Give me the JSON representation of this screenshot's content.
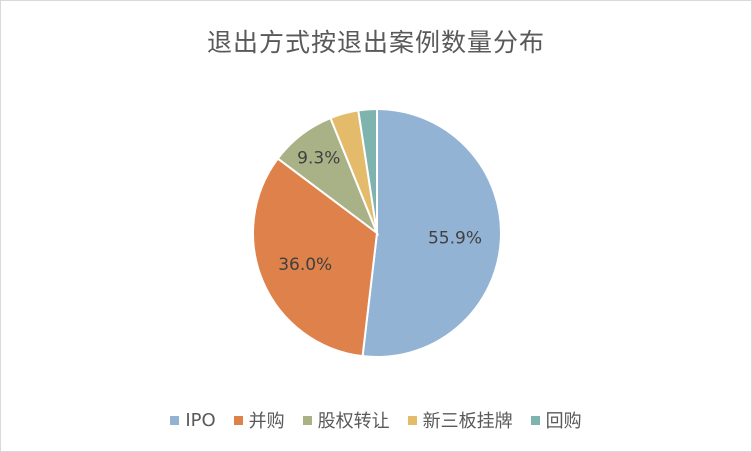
{
  "chart_data": {
    "type": "pie",
    "title": "退出方式按退出案例数量分布",
    "categories": [
      "IPO",
      "并购",
      "股权转让",
      "新三板挂牌",
      "回购"
    ],
    "values": [
      55.9,
      36.0,
      9.3,
      4.0,
      2.6
    ],
    "data_labels": [
      "55.9%",
      "36.0%",
      "9.3%",
      "",
      ""
    ],
    "colors": [
      "#93b3d5",
      "#df814a",
      "#a9b187",
      "#e3bb6b",
      "#7fb3ad"
    ],
    "legend_position": "bottom",
    "start_angle_deg": 0,
    "direction": "clockwise"
  }
}
